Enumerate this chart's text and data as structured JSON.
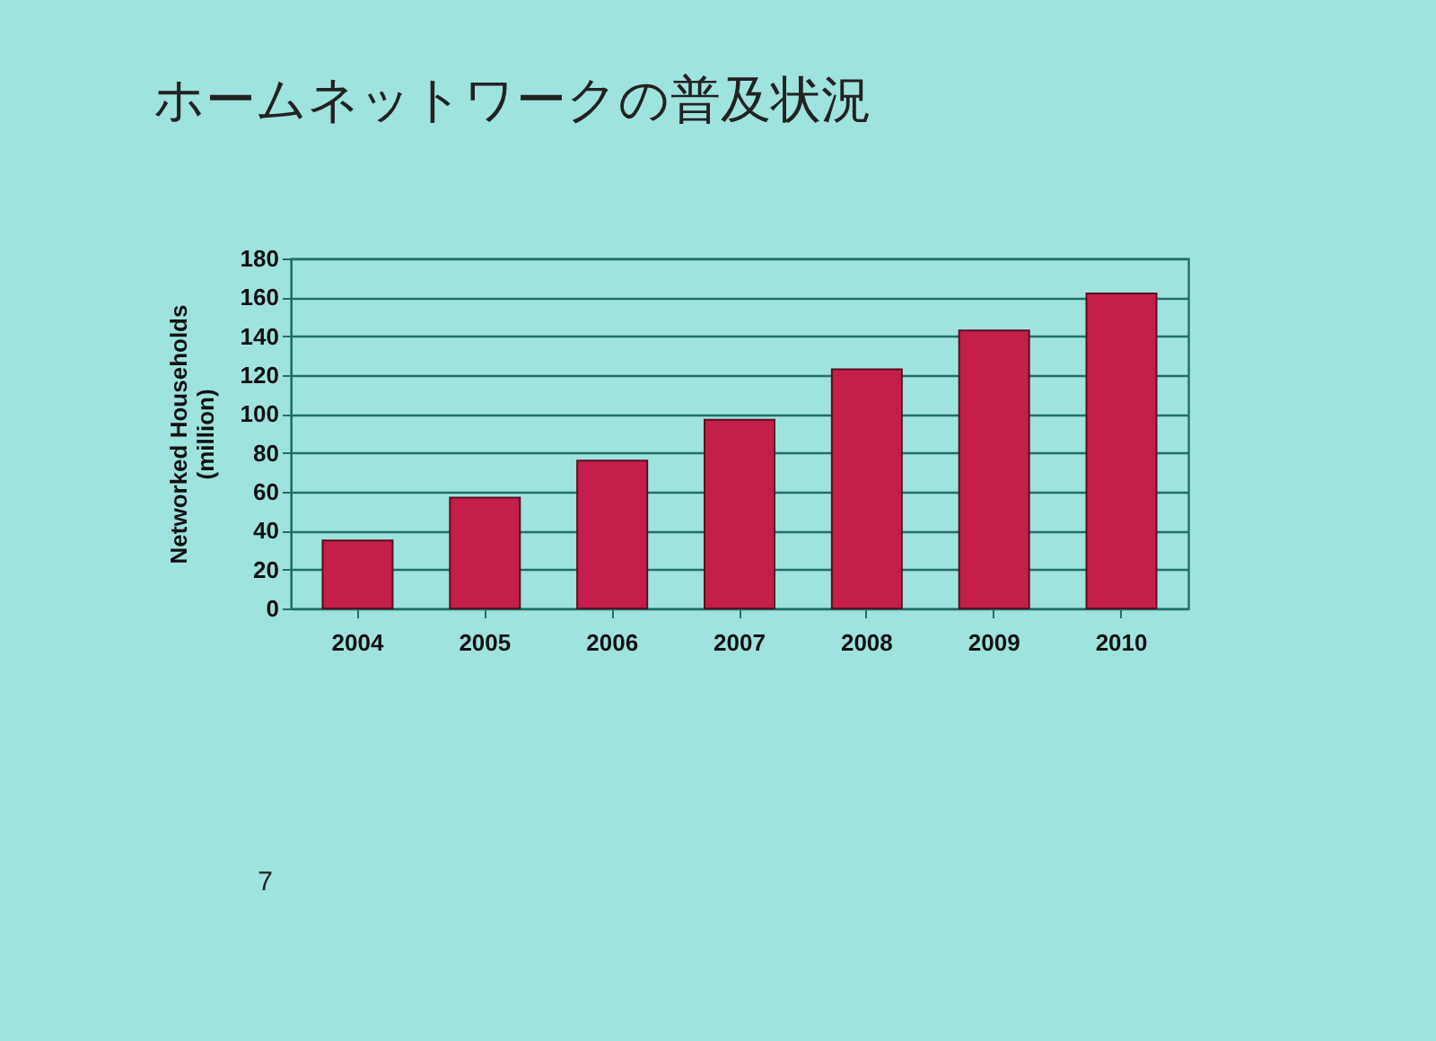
{
  "chart_data": {
    "type": "bar",
    "title": "ホームネットワークの普及状況",
    "ylabel": "Networked Households\n(million)",
    "categories": [
      "2004",
      "2005",
      "2006",
      "2007",
      "2008",
      "2009",
      "2010"
    ],
    "values": [
      35,
      57,
      76,
      97,
      123,
      143,
      162
    ],
    "color": "#c41e4a",
    "ylim": [
      0,
      180
    ],
    "yticks": [
      0,
      20,
      40,
      60,
      80,
      100,
      120,
      140,
      160,
      180
    ],
    "grid": "y",
    "annotations": [
      "7"
    ]
  }
}
